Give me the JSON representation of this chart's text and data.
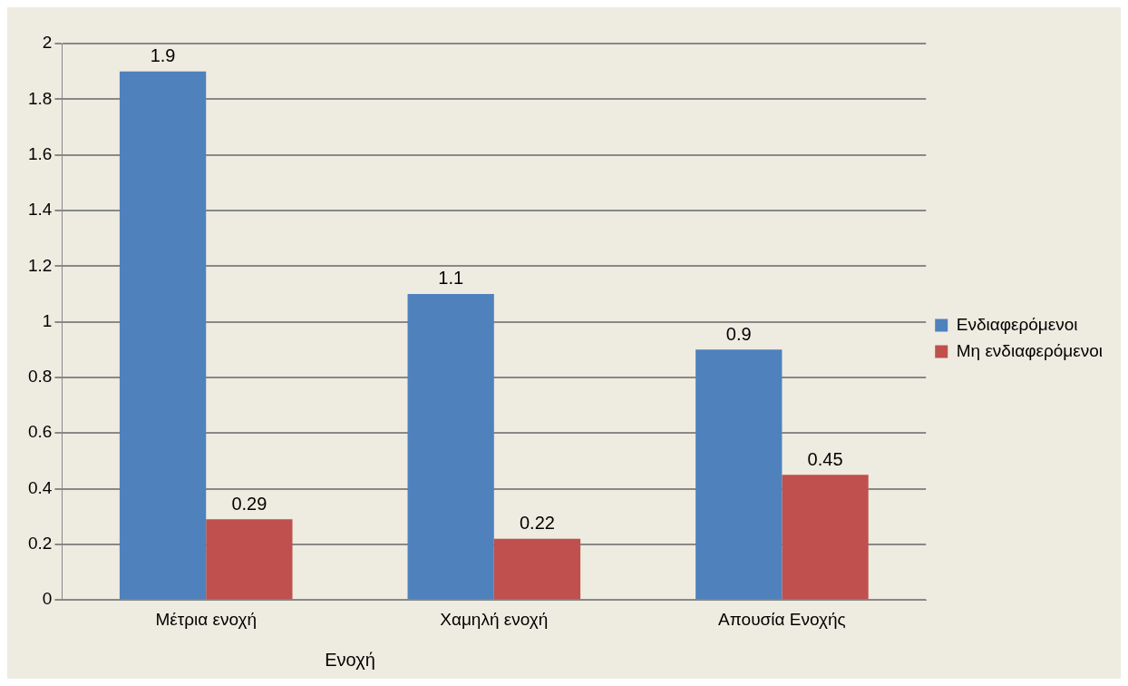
{
  "chart_data": {
    "type": "bar",
    "categories": [
      "Μέτρια ενοχή",
      "Χαμηλή ενοχή",
      "Απουσία Ενοχής"
    ],
    "series": [
      {
        "name": "Ενδιαφερόμενοι",
        "color": "#4f81bd",
        "values": [
          1.9,
          1.1,
          0.9
        ]
      },
      {
        "name": "Μη ενδιαφερόμενοι",
        "color": "#c0504d",
        "values": [
          0.29,
          0.22,
          0.45
        ]
      }
    ],
    "ylim": [
      0,
      2
    ],
    "yticks": [
      0,
      0.2,
      0.4,
      0.6,
      0.8,
      1,
      1.2,
      1.4,
      1.6,
      1.8,
      2
    ],
    "grid": "y",
    "legend": "right",
    "data_labels": true,
    "annotations": [
      "Ενοχή"
    ]
  }
}
